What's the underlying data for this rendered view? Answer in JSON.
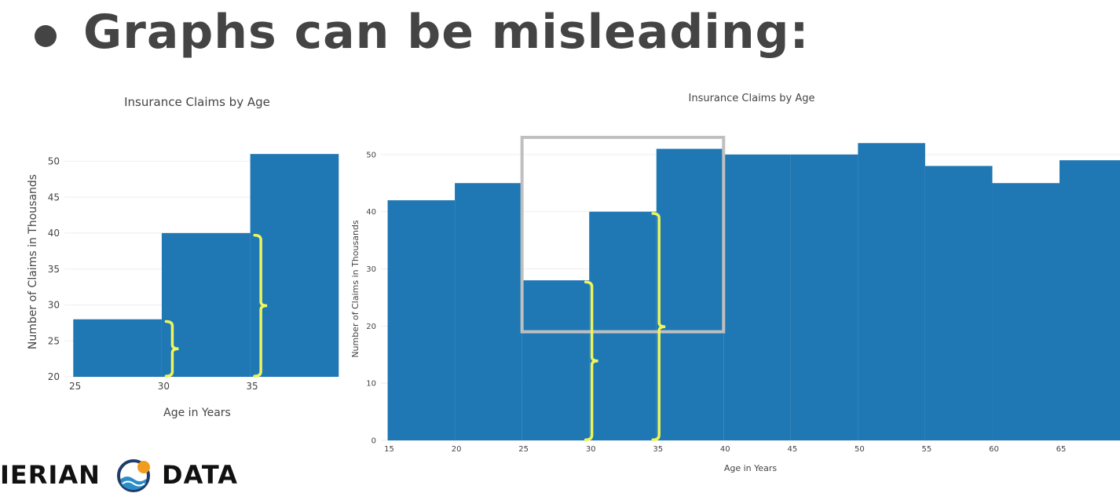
{
  "slide": {
    "title": "Graphs can be misleading:"
  },
  "logo": {
    "left_text": "IERIAN",
    "right_text": "DATA",
    "icon_colors": {
      "ring": "#1f3d6b",
      "dot": "#f29c1f",
      "wave": "#2a8dc8"
    }
  },
  "colors": {
    "bar": "#1f77b4",
    "bracket": "#eef55a",
    "highlight_box": "#bfbfbf",
    "grid": "#eeeeee",
    "text": "#444444"
  },
  "chart_data": [
    {
      "type": "bar",
      "title": "Insurance Claims by Age",
      "xlabel": "Age in Years",
      "ylabel": "Number of Claims in Thousands",
      "bin_starts": [
        25,
        30,
        35
      ],
      "bin_width": 5,
      "values": [
        28,
        40,
        51
      ],
      "xlim": [
        24.5,
        39.5
      ],
      "ylim": [
        20,
        52
      ],
      "x_ticks": [
        25,
        30,
        35
      ],
      "y_ticks": [
        20,
        25,
        30,
        35,
        40,
        45,
        50
      ],
      "grid": true,
      "annotations": [
        "yellow bracket spanning 20 to 28",
        "yellow bracket spanning 20 to 40"
      ]
    },
    {
      "type": "bar",
      "title": "Insurance Claims by Age",
      "xlabel": "Age in Years",
      "ylabel": "Number of Claims in Thousands",
      "bin_starts": [
        15,
        20,
        25,
        30,
        35,
        40,
        45,
        50,
        55,
        60,
        65
      ],
      "bin_width": 5,
      "values": [
        42,
        45,
        28,
        40,
        51,
        50,
        50,
        52,
        48,
        45,
        49
      ],
      "xlim": [
        14.5,
        69.5
      ],
      "ylim": [
        0,
        53
      ],
      "x_ticks": [
        15,
        20,
        25,
        30,
        35,
        40,
        45,
        50,
        55,
        60,
        65
      ],
      "y_ticks": [
        0,
        10,
        20,
        30,
        40,
        50
      ],
      "grid": true,
      "highlight_region": {
        "x": [
          25,
          40
        ],
        "y": [
          19,
          53
        ]
      },
      "annotations": [
        "grey box highlighting ages 25-40",
        "yellow bracket spanning 0 to 28",
        "yellow bracket spanning 0 to 40"
      ]
    }
  ]
}
